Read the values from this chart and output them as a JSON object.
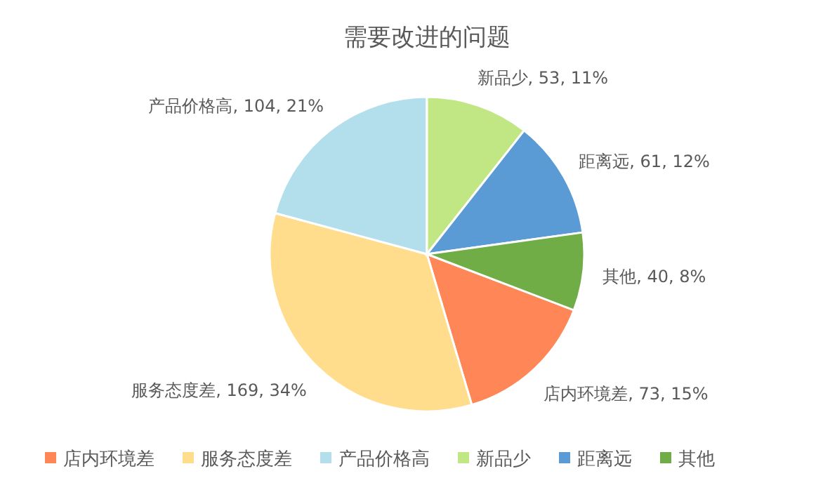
{
  "chart_data": {
    "type": "pie",
    "title": "需要改进的问题",
    "categories": [
      "店内环境差",
      "服务态度差",
      "产品价格高",
      "新品少",
      "距离远",
      "其他"
    ],
    "values": [
      73,
      169,
      104,
      53,
      61,
      40
    ],
    "value_labels": [
      "店内环境差, 73, 15%",
      "服务态度差, 169, 34%",
      "产品价格高, 104, 21%",
      "新品少, 53, 11%",
      "距离远, 61, 12%",
      "其他, 40, 8%"
    ],
    "colors": [
      "#ff8657",
      "#ffdd8c",
      "#b3dfec",
      "#c1e684",
      "#5b9bd5",
      "#70ad47"
    ],
    "legend": "bottom"
  }
}
